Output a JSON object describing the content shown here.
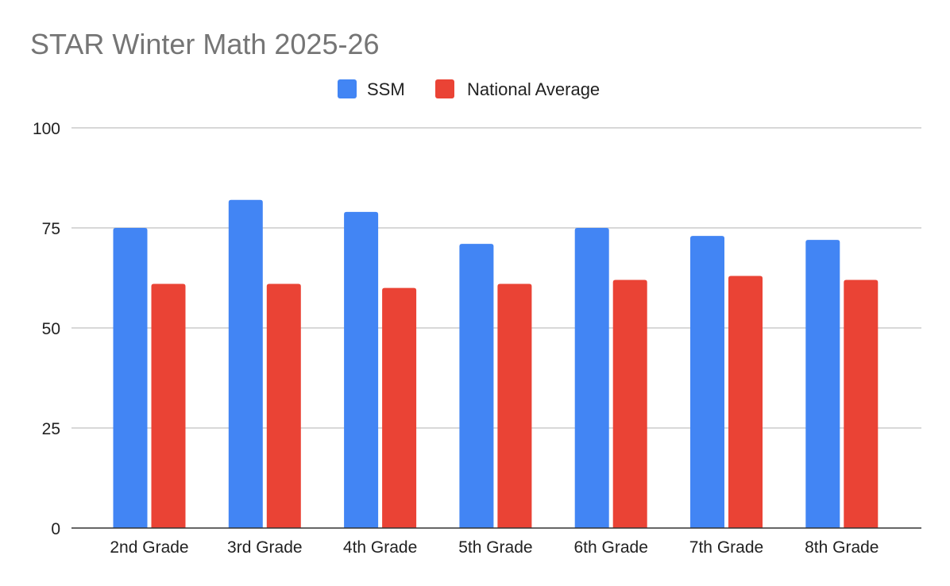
{
  "chart_data": {
    "type": "bar",
    "title": "STAR Winter Math 2025-26",
    "xlabel": "",
    "ylabel": "",
    "categories": [
      "2nd Grade",
      "3rd Grade",
      "4th Grade",
      "5th Grade",
      "6th Grade",
      "7th Grade",
      "8th Grade"
    ],
    "series": [
      {
        "name": "SSM",
        "color": "#4285f4",
        "values": [
          75,
          82,
          79,
          71,
          75,
          73,
          72
        ]
      },
      {
        "name": "National Average",
        "color": "#ea4335",
        "values": [
          61,
          61,
          60,
          61,
          62,
          63,
          62
        ]
      }
    ],
    "ylim": [
      0,
      100
    ],
    "yticks": [
      "0",
      "25",
      "50",
      "75",
      "100"
    ],
    "grid": true,
    "legend_position": "top-center"
  }
}
